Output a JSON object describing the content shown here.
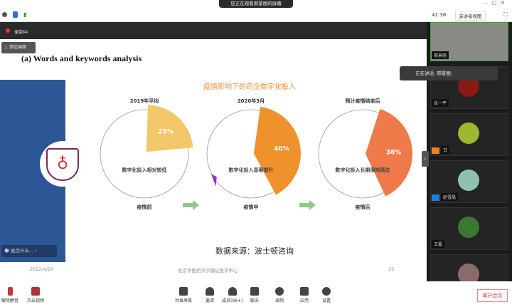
{
  "window": {
    "share_notice": "您正在观看邢景丽的屏幕",
    "timer": "41:38",
    "view_mode": "演讲者视图"
  },
  "recording": {
    "label": "录制中",
    "pin_label": "锁定画面"
  },
  "slide": {
    "heading": "(a) Words and keywords analysis",
    "chart_title": "疫情影响下的药企数字化投入",
    "source": "数据来源：波士顿咨询",
    "footer_date": "2022/4/20",
    "footer_org": "北京中医药大学循证医学中心",
    "page": "25",
    "chat_placeholder": "说点什么...",
    "chart_data": {
      "type": "pie",
      "charts": [
        {
          "title": "2019年平均",
          "value": 23,
          "label": "23%",
          "note": "数字化投入相对较低",
          "stage": "疫情前",
          "color": "#f2c76a"
        },
        {
          "title": "2020年3月",
          "value": 40,
          "label": "40%",
          "note": "数字化投入显著提升",
          "stage": "疫情中",
          "color": "#f0922b"
        },
        {
          "title": "预计疫情结束后",
          "value": 38,
          "label": "38%",
          "note": "数字化投入长期保持高位",
          "stage": "疫情后",
          "color": "#ee7a4a"
        }
      ]
    }
  },
  "panel": {
    "speaking": "正在讲话: 邢景丽;",
    "participants": [
      {
        "name": "邢景丽"
      },
      {
        "name": "张一平"
      },
      {
        "name": "甘"
      },
      {
        "name": "赵雪晶"
      },
      {
        "name": "王磊"
      },
      {
        "name": ""
      }
    ]
  },
  "toolbar": {
    "mute": "解除静音",
    "video": "开启视频",
    "share": "共享屏幕",
    "invite": "邀请",
    "members": "成员(99+)",
    "chat": "聊天",
    "record": "录制",
    "apps": "应用",
    "settings": "设置",
    "leave": "离开会议"
  }
}
